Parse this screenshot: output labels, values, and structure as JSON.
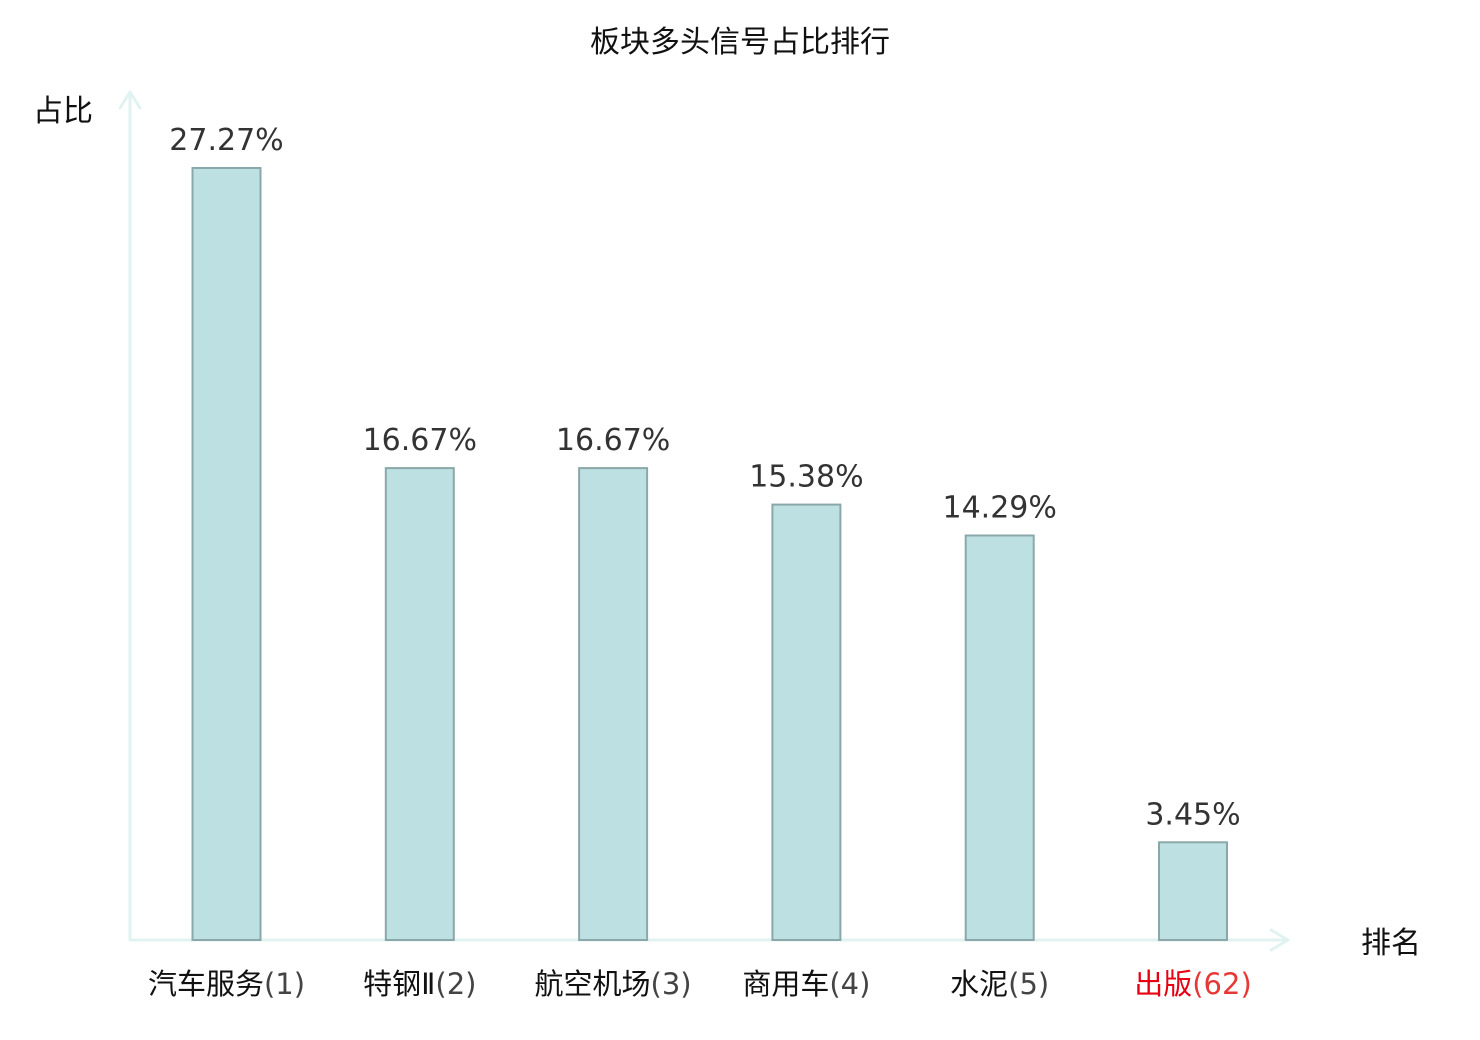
{
  "chart_data": {
    "type": "bar",
    "title": "板块多头信号占比排行",
    "ylabel": "占比",
    "xlabel": "排名",
    "categories": [
      "汽车服务",
      "特钢Ⅱ",
      "航空机场",
      "商用车",
      "水泥",
      "出版"
    ],
    "ranks": [
      "(1)",
      "(2)",
      "(3)",
      "(4)",
      "(5)",
      "(62)"
    ],
    "values": [
      27.27,
      16.67,
      16.67,
      15.38,
      14.29,
      3.45
    ],
    "value_labels": [
      "27.27%",
      "16.67%",
      "16.67%",
      "15.38%",
      "14.29%",
      "3.45%"
    ],
    "highlight": [
      false,
      false,
      false,
      false,
      false,
      true
    ],
    "ylim": [
      0,
      27.27
    ],
    "grid": false,
    "colors": {
      "bar_fill": "#bde0e2",
      "bar_stroke": "#8aa8a9",
      "axis": "#e0f3f1",
      "label_normal_name": "#111111",
      "label_normal_rank": "#444444",
      "label_highlight_name": "#e60012",
      "label_highlight_rank": "#e53935"
    }
  }
}
